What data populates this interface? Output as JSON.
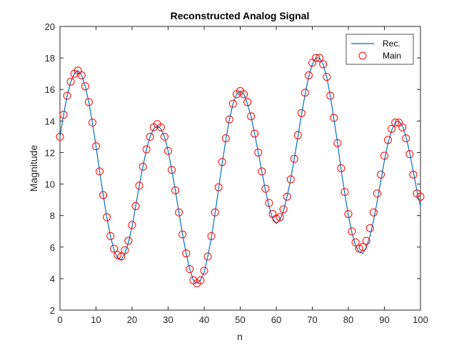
{
  "chart_data": {
    "type": "line",
    "title": "Reconstructed Analog Signal",
    "xlabel": "n",
    "ylabel": "Magnitude",
    "xlim": [
      0,
      100
    ],
    "ylim": [
      2,
      20
    ],
    "xticks": [
      0,
      10,
      20,
      30,
      40,
      50,
      60,
      70,
      80,
      90,
      100
    ],
    "yticks": [
      2,
      4,
      6,
      8,
      10,
      12,
      14,
      16,
      18,
      20
    ],
    "grid": false,
    "legend_position": "top-right",
    "series": [
      {
        "name": "Rec.",
        "style": "line",
        "color": "#0072BD",
        "x": [
          0,
          1,
          2,
          3,
          4,
          5,
          6,
          7,
          8,
          9,
          10,
          11,
          12,
          13,
          14,
          15,
          16,
          17,
          18,
          19,
          20,
          21,
          22,
          23,
          24,
          25,
          26,
          27,
          28,
          29,
          30,
          31,
          32,
          33,
          34,
          35,
          36,
          37,
          38,
          39,
          40,
          41,
          42,
          43,
          44,
          45,
          46,
          47,
          48,
          49,
          50,
          51,
          52,
          53,
          54,
          55,
          56,
          57,
          58,
          59,
          60,
          61,
          62,
          63,
          64,
          65,
          66,
          67,
          68,
          69,
          70,
          71,
          72,
          73,
          74,
          75,
          76,
          77,
          78,
          79,
          80,
          81,
          82,
          83,
          84,
          85,
          86,
          87,
          88,
          89,
          90,
          91,
          92,
          93,
          94,
          95,
          96,
          97,
          98,
          99,
          100
        ],
        "y": [
          13.0,
          14.4,
          15.6,
          16.5,
          17.0,
          17.2,
          16.9,
          16.2,
          15.2,
          13.9,
          12.4,
          10.8,
          9.3,
          7.9,
          6.7,
          5.8,
          5.3,
          5.2,
          5.6,
          6.3,
          7.3,
          8.6,
          9.9,
          11.1,
          12.2,
          13.0,
          13.5,
          13.7,
          13.5,
          13.0,
          12.1,
          10.9,
          9.6,
          8.2,
          6.8,
          5.6,
          4.6,
          3.9,
          3.7,
          3.9,
          4.4,
          5.4,
          6.6,
          8.1,
          9.7,
          11.3,
          12.8,
          14.1,
          15.1,
          15.7,
          15.9,
          15.7,
          15.1,
          14.3,
          13.2,
          12.0,
          10.8,
          9.6,
          8.6,
          7.8,
          7.5,
          7.7,
          8.3,
          9.2,
          10.3,
          11.6,
          13.0,
          14.4,
          15.7,
          16.8,
          17.6,
          18.0,
          18.0,
          17.6,
          16.8,
          15.6,
          14.1,
          12.6,
          10.9,
          9.4,
          8.0,
          6.9,
          6.1,
          5.7,
          5.6,
          6.0,
          6.7,
          7.7,
          8.9,
          10.2,
          11.5,
          12.6,
          13.4,
          13.9,
          14.0,
          13.7,
          13.0,
          12.0,
          10.8,
          9.6,
          8.6
        ]
      },
      {
        "name": "Main",
        "style": "markers",
        "marker": "circle",
        "color": "#FF0000",
        "x": [
          0,
          1,
          2,
          3,
          4,
          5,
          6,
          7,
          8,
          9,
          10,
          11,
          12,
          13,
          14,
          15,
          16,
          17,
          18,
          19,
          20,
          21,
          22,
          23,
          24,
          25,
          26,
          27,
          28,
          29,
          30,
          31,
          32,
          33,
          34,
          35,
          36,
          37,
          38,
          39,
          40,
          41,
          42,
          43,
          44,
          45,
          46,
          47,
          48,
          49,
          50,
          51,
          52,
          53,
          54,
          55,
          56,
          57,
          58,
          59,
          60,
          61,
          62,
          63,
          64,
          65,
          66,
          67,
          68,
          69,
          70,
          71,
          72,
          73,
          74,
          75,
          76,
          77,
          78,
          79,
          80,
          81,
          82,
          83,
          84,
          85,
          86,
          87,
          88,
          89,
          90,
          91,
          92,
          93,
          94,
          95,
          96,
          97,
          98,
          99,
          100
        ],
        "y": [
          13.0,
          14.4,
          15.6,
          16.5,
          17.0,
          17.2,
          16.9,
          16.2,
          15.2,
          13.9,
          12.4,
          10.8,
          9.3,
          7.9,
          6.7,
          5.9,
          5.5,
          5.4,
          5.8,
          6.4,
          7.4,
          8.6,
          9.9,
          11.1,
          12.2,
          13.0,
          13.6,
          13.8,
          13.6,
          13.0,
          12.1,
          10.9,
          9.6,
          8.2,
          6.8,
          5.6,
          4.6,
          3.9,
          3.7,
          3.9,
          4.5,
          5.4,
          6.7,
          8.2,
          9.8,
          11.4,
          12.9,
          14.1,
          15.1,
          15.7,
          15.9,
          15.7,
          15.2,
          14.3,
          13.2,
          12.0,
          10.8,
          9.7,
          8.8,
          8.1,
          7.8,
          7.9,
          8.4,
          9.2,
          10.3,
          11.6,
          13.1,
          14.5,
          15.8,
          16.9,
          17.7,
          18.0,
          18.0,
          17.6,
          16.8,
          15.6,
          14.2,
          12.6,
          11.0,
          9.5,
          8.1,
          7.0,
          6.3,
          5.9,
          6.0,
          6.4,
          7.2,
          8.2,
          9.4,
          10.6,
          11.8,
          12.8,
          13.5,
          13.9,
          13.9,
          13.6,
          12.9,
          11.9,
          10.6,
          9.4,
          9.2
        ]
      }
    ]
  }
}
